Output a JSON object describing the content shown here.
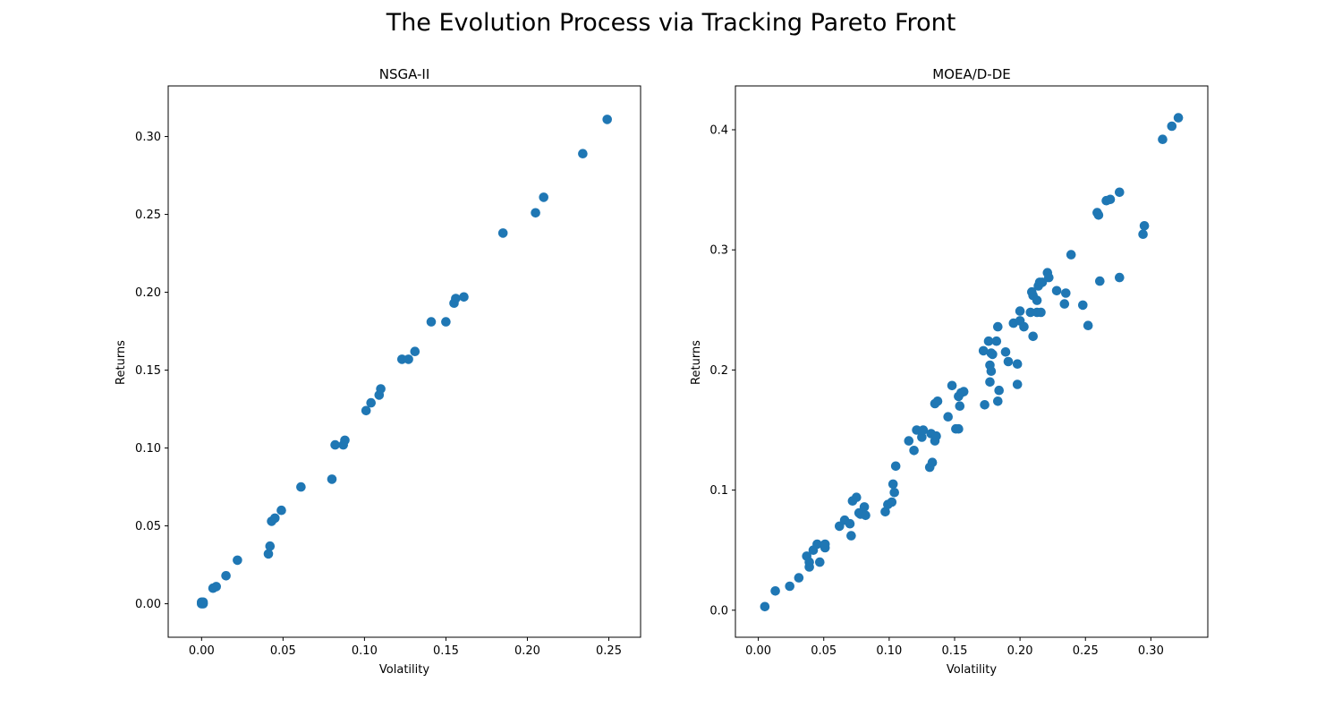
{
  "figure": {
    "title": "The Evolution Process via Tracking Pareto Front"
  },
  "colors": {
    "marker": "#1f77b4",
    "axes": "#000000",
    "background": "#ffffff"
  },
  "chart_data": [
    {
      "type": "scatter",
      "title": "NSGA-II",
      "xlabel": "Volatility",
      "ylabel": "Returns",
      "xlim": [
        -0.0205,
        0.2695
      ],
      "ylim": [
        -0.0215,
        0.3325
      ],
      "xticks": [
        0.0,
        0.05,
        0.1,
        0.15,
        0.2,
        0.25
      ],
      "xtick_labels": [
        "0.00",
        "0.05",
        "0.10",
        "0.15",
        "0.20",
        "0.25"
      ],
      "yticks": [
        0.0,
        0.05,
        0.1,
        0.15,
        0.2,
        0.25,
        0.3
      ],
      "ytick_labels": [
        "0.00",
        "0.05",
        "0.10",
        "0.15",
        "0.20",
        "0.25",
        "0.30"
      ],
      "grid": false,
      "series": [
        {
          "color": "#1f77b4",
          "x": [
            0.0,
            0.001,
            0.0,
            0.001,
            0.007,
            0.009,
            0.015,
            0.022,
            0.041,
            0.042,
            0.043,
            0.045,
            0.049,
            0.061,
            0.08,
            0.082,
            0.087,
            0.088,
            0.101,
            0.104,
            0.109,
            0.11,
            0.123,
            0.127,
            0.131,
            0.141,
            0.15,
            0.155,
            0.156,
            0.161,
            0.185,
            0.205,
            0.21,
            0.234,
            0.249
          ],
          "y": [
            0.0,
            0.0,
            0.001,
            0.001,
            0.01,
            0.011,
            0.018,
            0.028,
            0.032,
            0.037,
            0.053,
            0.055,
            0.06,
            0.075,
            0.08,
            0.102,
            0.102,
            0.105,
            0.124,
            0.129,
            0.134,
            0.138,
            0.157,
            0.157,
            0.162,
            0.181,
            0.181,
            0.193,
            0.196,
            0.197,
            0.238,
            0.251,
            0.261,
            0.289,
            0.311
          ]
        }
      ]
    },
    {
      "type": "scatter",
      "title": "MOEA/D-DE",
      "xlabel": "Volatility",
      "ylabel": "Returns",
      "xlim": [
        -0.0175,
        0.3435
      ],
      "ylim": [
        -0.0225,
        0.4365
      ],
      "xticks": [
        0.0,
        0.05,
        0.1,
        0.15,
        0.2,
        0.25,
        0.3
      ],
      "xtick_labels": [
        "0.00",
        "0.05",
        "0.10",
        "0.15",
        "0.20",
        "0.25",
        "0.30"
      ],
      "yticks": [
        0.0,
        0.1,
        0.2,
        0.3,
        0.4
      ],
      "ytick_labels": [
        "0.0",
        "0.1",
        "0.2",
        "0.3",
        "0.4"
      ],
      "grid": false,
      "series": [
        {
          "color": "#1f77b4",
          "x": [
            0.005,
            0.013,
            0.024,
            0.031,
            0.037,
            0.039,
            0.039,
            0.042,
            0.045,
            0.047,
            0.051,
            0.051,
            0.062,
            0.066,
            0.07,
            0.071,
            0.072,
            0.075,
            0.077,
            0.078,
            0.081,
            0.082,
            0.097,
            0.099,
            0.102,
            0.103,
            0.104,
            0.105,
            0.115,
            0.119,
            0.121,
            0.125,
            0.126,
            0.131,
            0.132,
            0.133,
            0.135,
            0.135,
            0.136,
            0.137,
            0.145,
            0.148,
            0.151,
            0.153,
            0.153,
            0.154,
            0.155,
            0.157,
            0.172,
            0.173,
            0.176,
            0.177,
            0.177,
            0.178,
            0.178,
            0.179,
            0.182,
            0.183,
            0.183,
            0.184,
            0.189,
            0.191,
            0.195,
            0.198,
            0.198,
            0.2,
            0.2,
            0.203,
            0.208,
            0.209,
            0.21,
            0.21,
            0.213,
            0.213,
            0.214,
            0.215,
            0.216,
            0.217,
            0.221,
            0.222,
            0.228,
            0.234,
            0.235,
            0.239,
            0.248,
            0.252,
            0.259,
            0.26,
            0.261,
            0.266,
            0.269,
            0.276,
            0.276,
            0.294,
            0.295,
            0.309,
            0.316,
            0.321
          ],
          "y": [
            0.003,
            0.016,
            0.02,
            0.027,
            0.045,
            0.036,
            0.04,
            0.05,
            0.055,
            0.04,
            0.052,
            0.055,
            0.07,
            0.075,
            0.072,
            0.062,
            0.091,
            0.094,
            0.081,
            0.08,
            0.086,
            0.079,
            0.082,
            0.088,
            0.09,
            0.105,
            0.098,
            0.12,
            0.141,
            0.133,
            0.15,
            0.144,
            0.15,
            0.119,
            0.147,
            0.123,
            0.141,
            0.172,
            0.145,
            0.174,
            0.161,
            0.187,
            0.151,
            0.178,
            0.151,
            0.17,
            0.181,
            0.182,
            0.216,
            0.171,
            0.224,
            0.204,
            0.19,
            0.199,
            0.214,
            0.213,
            0.224,
            0.236,
            0.174,
            0.183,
            0.215,
            0.207,
            0.239,
            0.205,
            0.188,
            0.241,
            0.249,
            0.236,
            0.248,
            0.265,
            0.262,
            0.228,
            0.258,
            0.248,
            0.27,
            0.273,
            0.248,
            0.273,
            0.281,
            0.277,
            0.266,
            0.255,
            0.264,
            0.296,
            0.254,
            0.237,
            0.331,
            0.329,
            0.274,
            0.341,
            0.342,
            0.348,
            0.277,
            0.313,
            0.32,
            0.392,
            0.403,
            0.41
          ]
        }
      ]
    }
  ]
}
